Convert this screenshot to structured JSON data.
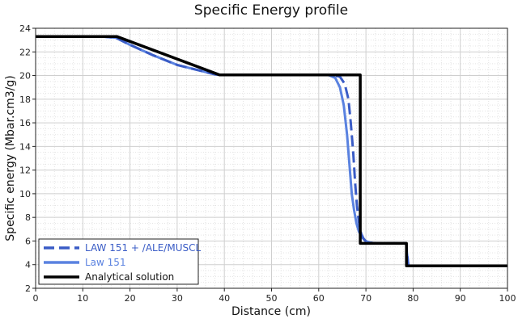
{
  "chart_data": {
    "type": "line",
    "title": "Specific Energy profile",
    "xlabel": "Distance (cm)",
    "ylabel": "Specific energy (Mbar.cm3/g)",
    "xlim": [
      0,
      100
    ],
    "ylim": [
      2,
      24
    ],
    "xticks": [
      0,
      10,
      20,
      30,
      40,
      50,
      60,
      70,
      80,
      90,
      100
    ],
    "yticks": [
      2,
      4,
      6,
      8,
      10,
      12,
      14,
      16,
      18,
      20,
      22,
      24
    ],
    "grid": true,
    "legend_position": "bottom-left",
    "series": [
      {
        "name": "LAW 151 + /ALE/MUSCL",
        "color": "#3a5cc6",
        "style": "dashed",
        "x": [
          0,
          14,
          17,
          20,
          25,
          30,
          35,
          38,
          40,
          45,
          50,
          55,
          60,
          63,
          64.5,
          65.5,
          66.3,
          66.8,
          67.3,
          67.7,
          68.1,
          68.5,
          69,
          69.5,
          70,
          71,
          72,
          78.5,
          78.7,
          79,
          85,
          100
        ],
        "y": [
          23.3,
          23.3,
          23.2,
          22.6,
          21.7,
          20.9,
          20.4,
          20.1,
          20.05,
          20.05,
          20.05,
          20.05,
          20.05,
          20.05,
          19.9,
          19.3,
          18.0,
          16.0,
          13.5,
          11.0,
          9.0,
          7.6,
          6.6,
          6.2,
          5.95,
          5.85,
          5.8,
          5.8,
          5.0,
          3.9,
          3.9,
          3.9
        ]
      },
      {
        "name": "Law 151",
        "color": "#5a82e0",
        "style": "solid",
        "x": [
          0,
          14,
          17,
          20,
          25,
          30,
          35,
          38,
          40,
          45,
          50,
          55,
          60,
          62,
          63.5,
          64.5,
          65.3,
          66,
          66.5,
          67,
          67.5,
          68,
          68.5,
          69.2,
          70,
          71,
          72,
          78.5,
          78.7,
          79,
          85,
          100
        ],
        "y": [
          23.3,
          23.3,
          23.2,
          22.6,
          21.7,
          20.9,
          20.4,
          20.1,
          20.05,
          20.05,
          20.05,
          20.05,
          20.05,
          20.05,
          19.8,
          19.0,
          17.5,
          15.0,
          12.5,
          10.0,
          8.6,
          7.5,
          6.8,
          6.3,
          6.0,
          5.85,
          5.8,
          5.8,
          5.0,
          3.9,
          3.9,
          3.9
        ]
      },
      {
        "name": "Analytical solution",
        "color": "#000000",
        "style": "solid",
        "x": [
          0,
          17.2,
          39,
          68.8,
          68.8,
          78.6,
          78.6,
          100
        ],
        "y": [
          23.3,
          23.3,
          20.05,
          20.05,
          5.8,
          5.8,
          3.9,
          3.9
        ]
      }
    ]
  }
}
